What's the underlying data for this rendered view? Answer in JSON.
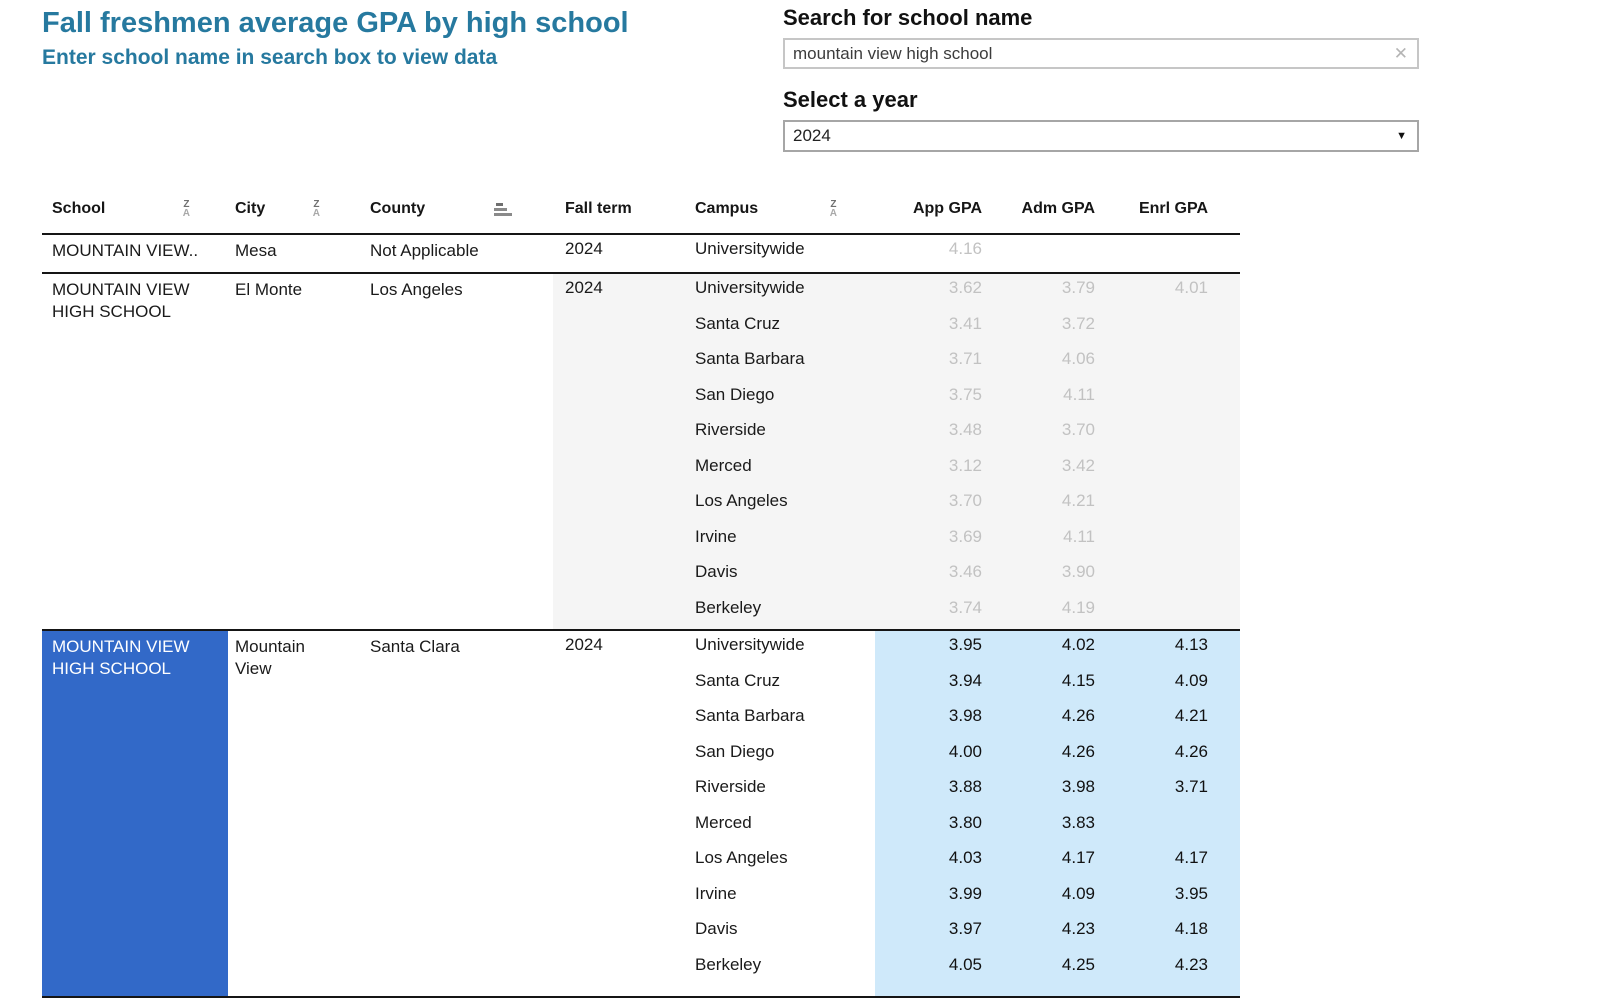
{
  "header": {
    "title": "Fall freshmen average GPA by high school",
    "subtitle": "Enter school name in search box to view data"
  },
  "controls": {
    "search_label": "Search for school name",
    "search_value": "mountain view high school",
    "clear_icon": "✕",
    "year_label": "Select a year",
    "year_value": "2024",
    "dropdown_arrow": "▼"
  },
  "colors": {
    "title_teal": "#26799f",
    "selected_row_blue": "#3269c8",
    "highlight_cell_blue": "#cfe9fa",
    "dimmed_group_bg": "#f5f5f5",
    "dimmed_value_text": "#c2c2c2"
  },
  "table": {
    "columns": [
      {
        "label": "School",
        "sort": "za"
      },
      {
        "label": "City",
        "sort": "za"
      },
      {
        "label": "County",
        "sort": "bars"
      },
      {
        "label": "Fall term",
        "sort": null
      },
      {
        "label": "Campus",
        "sort": "za"
      },
      {
        "label": "App GPA",
        "sort": null
      },
      {
        "label": "Adm GPA",
        "sort": null
      },
      {
        "label": "Enrl GPA",
        "sort": null
      }
    ],
    "groups": [
      {
        "school": "MOUNTAIN VIEW..",
        "city": "Mesa",
        "county": "Not Applicable",
        "fall_term": "2024",
        "style": "plain",
        "rows": [
          {
            "campus": "Universitywide",
            "app": "4.16",
            "adm": "",
            "enrl": ""
          }
        ]
      },
      {
        "school": "MOUNTAIN VIEW HIGH SCHOOL",
        "city": "El Monte",
        "county": "Los Angeles",
        "fall_term": "2024",
        "style": "dimmed",
        "rows": [
          {
            "campus": "Universitywide",
            "app": "3.62",
            "adm": "3.79",
            "enrl": "4.01"
          },
          {
            "campus": "Santa Cruz",
            "app": "3.41",
            "adm": "3.72",
            "enrl": ""
          },
          {
            "campus": "Santa Barbara",
            "app": "3.71",
            "adm": "4.06",
            "enrl": ""
          },
          {
            "campus": "San Diego",
            "app": "3.75",
            "adm": "4.11",
            "enrl": ""
          },
          {
            "campus": "Riverside",
            "app": "3.48",
            "adm": "3.70",
            "enrl": ""
          },
          {
            "campus": "Merced",
            "app": "3.12",
            "adm": "3.42",
            "enrl": ""
          },
          {
            "campus": "Los Angeles",
            "app": "3.70",
            "adm": "4.21",
            "enrl": ""
          },
          {
            "campus": "Irvine",
            "app": "3.69",
            "adm": "4.11",
            "enrl": ""
          },
          {
            "campus": "Davis",
            "app": "3.46",
            "adm": "3.90",
            "enrl": ""
          },
          {
            "campus": "Berkeley",
            "app": "3.74",
            "adm": "4.19",
            "enrl": ""
          }
        ]
      },
      {
        "school": "MOUNTAIN VIEW HIGH SCHOOL",
        "city": "Mountain View",
        "county": "Santa Clara",
        "fall_term": "2024",
        "style": "highlighted",
        "rows": [
          {
            "campus": "Universitywide",
            "app": "3.95",
            "adm": "4.02",
            "enrl": "4.13"
          },
          {
            "campus": "Santa Cruz",
            "app": "3.94",
            "adm": "4.15",
            "enrl": "4.09"
          },
          {
            "campus": "Santa Barbara",
            "app": "3.98",
            "adm": "4.26",
            "enrl": "4.21"
          },
          {
            "campus": "San Diego",
            "app": "4.00",
            "adm": "4.26",
            "enrl": "4.26"
          },
          {
            "campus": "Riverside",
            "app": "3.88",
            "adm": "3.98",
            "enrl": "3.71"
          },
          {
            "campus": "Merced",
            "app": "3.80",
            "adm": "3.83",
            "enrl": ""
          },
          {
            "campus": "Los Angeles",
            "app": "4.03",
            "adm": "4.17",
            "enrl": "4.17"
          },
          {
            "campus": "Irvine",
            "app": "3.99",
            "adm": "4.09",
            "enrl": "3.95"
          },
          {
            "campus": "Davis",
            "app": "3.97",
            "adm": "4.23",
            "enrl": "4.18"
          },
          {
            "campus": "Berkeley",
            "app": "4.05",
            "adm": "4.25",
            "enrl": "4.23"
          }
        ]
      }
    ]
  }
}
